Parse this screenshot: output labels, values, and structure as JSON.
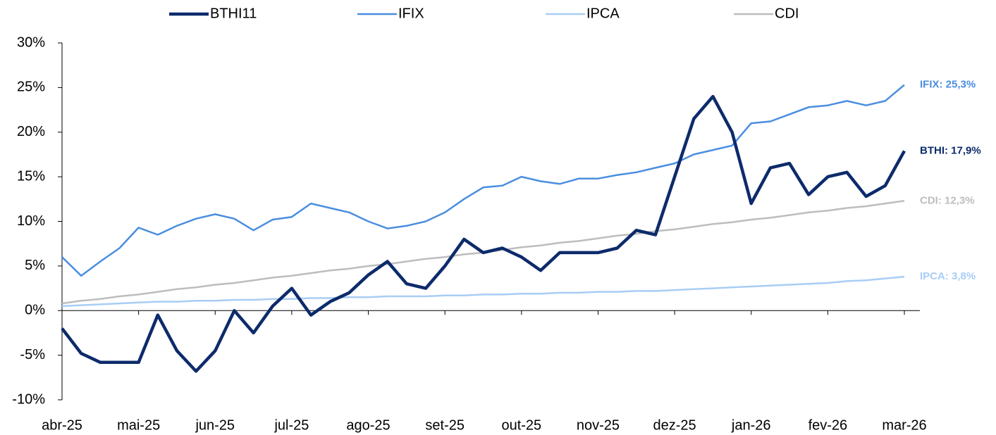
{
  "chart_data": {
    "type": "line",
    "x": [
      0,
      0.25,
      0.5,
      0.75,
      1,
      1.25,
      1.5,
      1.75,
      2,
      2.25,
      2.5,
      2.75,
      3,
      3.25,
      3.5,
      3.75,
      4,
      4.25,
      4.5,
      4.75,
      5,
      5.25,
      5.5,
      5.75,
      6,
      6.25,
      6.5,
      6.75,
      7,
      7.25,
      7.5,
      7.75,
      8,
      8.25,
      8.5,
      8.75,
      9,
      9.25,
      9.5,
      9.75,
      10,
      10.25,
      10.5,
      10.75,
      11
    ],
    "xlim": [
      0,
      11
    ],
    "xticks": [
      {
        "value": 0,
        "label": "abr-25"
      },
      {
        "value": 1,
        "label": "mai-25"
      },
      {
        "value": 2,
        "label": "jun-25"
      },
      {
        "value": 3,
        "label": "jul-25"
      },
      {
        "value": 4,
        "label": "ago-25"
      },
      {
        "value": 5,
        "label": "set-25"
      },
      {
        "value": 6,
        "label": "out-25"
      },
      {
        "value": 7,
        "label": "nov-25"
      },
      {
        "value": 8,
        "label": "dez-25"
      },
      {
        "value": 9,
        "label": "jan-26"
      },
      {
        "value": 10,
        "label": "fev-26"
      },
      {
        "value": 11,
        "label": "mar-26"
      }
    ],
    "ylim": [
      -10,
      30
    ],
    "yticks": [
      {
        "value": -10,
        "label": "-10%"
      },
      {
        "value": -5,
        "label": "-5%"
      },
      {
        "value": 0,
        "label": "0%"
      },
      {
        "value": 5,
        "label": "5%"
      },
      {
        "value": 10,
        "label": "10%"
      },
      {
        "value": 15,
        "label": "15%"
      },
      {
        "value": 20,
        "label": "20%"
      },
      {
        "value": 25,
        "label": "25%"
      },
      {
        "value": 30,
        "label": "30%"
      }
    ],
    "legend": "top",
    "series": [
      {
        "name": "BTHI11",
        "color": "#0d2b6b",
        "end_label": "BTHI: 17,9%",
        "values": [
          -2,
          -4.8,
          -5.8,
          -5.8,
          -5.8,
          -0.5,
          -4.5,
          -6.8,
          -4.5,
          0,
          -2.5,
          0.5,
          2.5,
          -0.5,
          1,
          2,
          4,
          5.5,
          3,
          2.5,
          5,
          8,
          6.5,
          7,
          6,
          4.5,
          6.5,
          6.5,
          6.5,
          7,
          9,
          8.5,
          15,
          21.5,
          24,
          20,
          12,
          16,
          16.5,
          13,
          15,
          15.5,
          12.8,
          14,
          17.9
        ]
      },
      {
        "name": "IFIX",
        "color": "#4a8ee0",
        "end_label": "IFIX: 25,3%",
        "values": [
          6,
          3.9,
          5.5,
          7,
          9.3,
          8.5,
          9.5,
          10.3,
          10.8,
          10.3,
          9,
          10.2,
          10.5,
          12,
          11.5,
          11,
          10,
          9.2,
          9.5,
          10,
          11,
          12.5,
          13.8,
          14,
          15,
          14.5,
          14.2,
          14.8,
          14.8,
          15.2,
          15.5,
          16,
          16.5,
          17.5,
          18,
          18.5,
          21,
          21.2,
          22,
          22.8,
          23,
          23.5,
          23,
          23.5,
          25.3
        ]
      },
      {
        "name": "IPCA",
        "color": "#a9cdf5",
        "end_label": "IPCA: 3,8%",
        "values": [
          0.5,
          0.6,
          0.7,
          0.8,
          0.9,
          1.0,
          1.0,
          1.1,
          1.1,
          1.2,
          1.2,
          1.3,
          1.3,
          1.4,
          1.4,
          1.5,
          1.5,
          1.6,
          1.6,
          1.6,
          1.7,
          1.7,
          1.8,
          1.8,
          1.9,
          1.9,
          2.0,
          2.0,
          2.1,
          2.1,
          2.2,
          2.2,
          2.3,
          2.4,
          2.5,
          2.6,
          2.7,
          2.8,
          2.9,
          3.0,
          3.1,
          3.3,
          3.4,
          3.6,
          3.8
        ]
      },
      {
        "name": "CDI",
        "color": "#bdbdbd",
        "end_label": "CDI: 12,3%",
        "values": [
          0.8,
          1.1,
          1.3,
          1.6,
          1.8,
          2.1,
          2.4,
          2.6,
          2.9,
          3.1,
          3.4,
          3.7,
          3.9,
          4.2,
          4.5,
          4.7,
          5.0,
          5.2,
          5.5,
          5.8,
          6.0,
          6.3,
          6.5,
          6.8,
          7.1,
          7.3,
          7.6,
          7.8,
          8.1,
          8.4,
          8.6,
          8.9,
          9.1,
          9.4,
          9.7,
          9.9,
          10.2,
          10.4,
          10.7,
          11.0,
          11.2,
          11.5,
          11.7,
          12.0,
          12.3
        ]
      }
    ]
  }
}
